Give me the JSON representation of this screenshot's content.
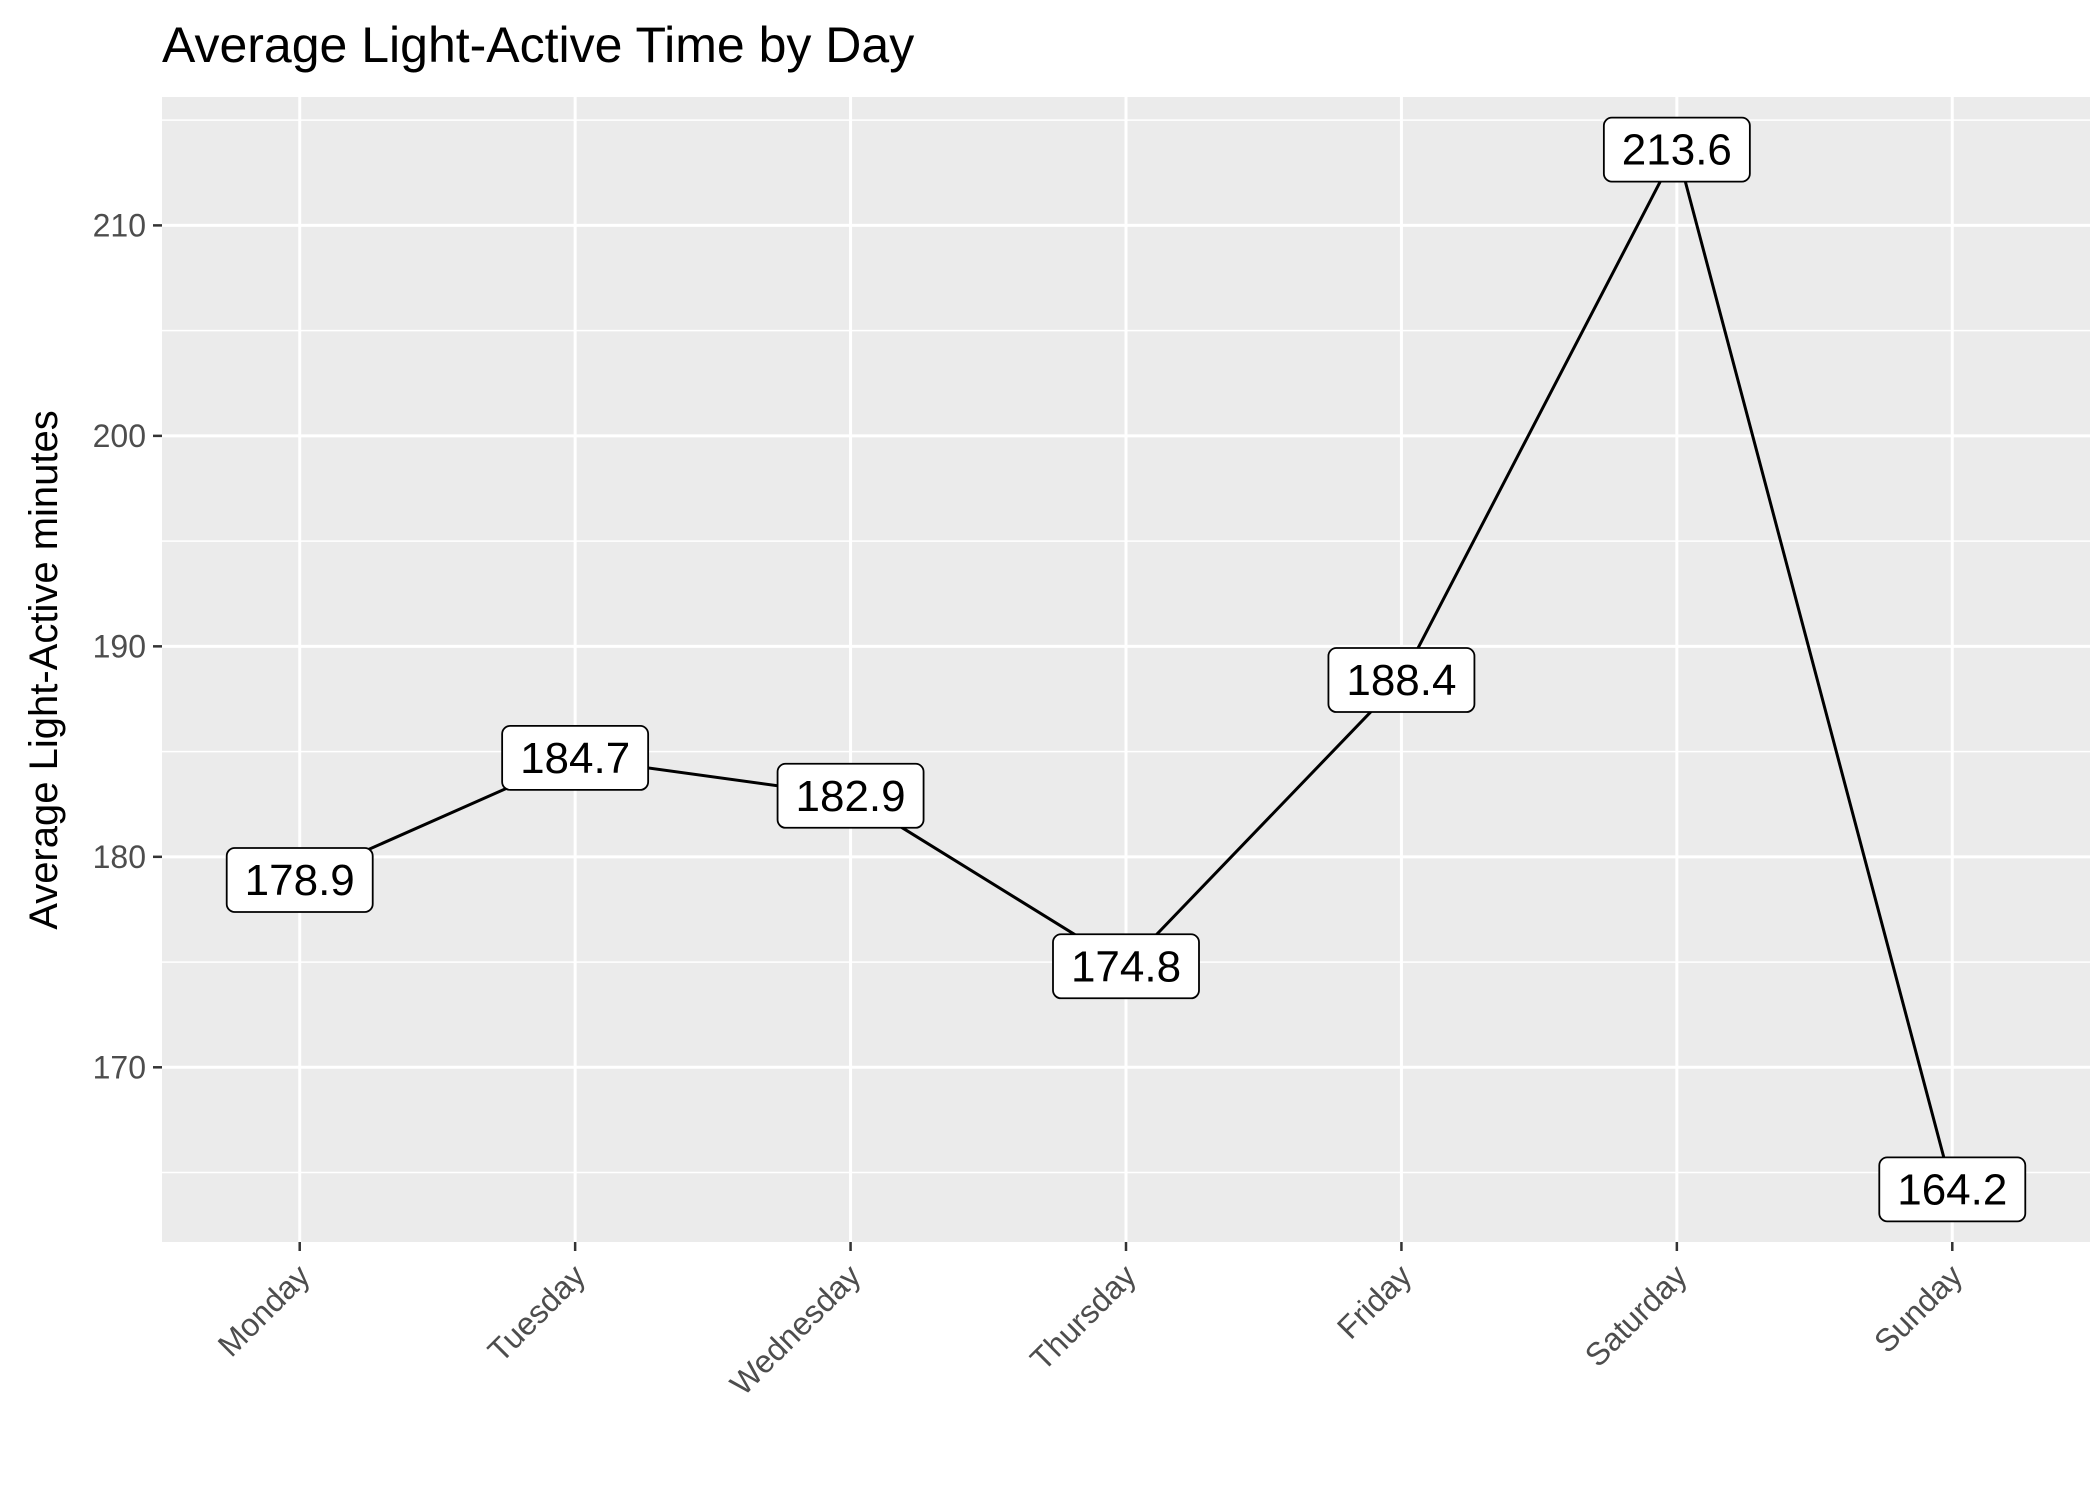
{
  "chart_data": {
    "type": "line",
    "title": "Average Light-Active Time by Day",
    "xlabel": "",
    "ylabel": "Average Light-Active minutes",
    "categories": [
      "Monday",
      "Tuesday",
      "Wednesday",
      "Thursday",
      "Friday",
      "Saturday",
      "Sunday"
    ],
    "values": [
      178.9,
      184.7,
      182.9,
      174.8,
      188.4,
      213.6,
      164.2
    ],
    "data_labels": [
      "178.9",
      "184.7",
      "182.9",
      "174.8",
      "188.4",
      "213.6",
      "164.2"
    ],
    "ylim": [
      161.7,
      216.1
    ],
    "yticks": [
      170,
      180,
      190,
      200,
      210
    ],
    "ytick_labels": [
      "170",
      "180",
      "190",
      "200",
      "210"
    ],
    "grid": true,
    "legend": "none",
    "colors": {
      "panel": "#ebebeb",
      "grid": "#ffffff",
      "line": "#000000",
      "label_fill": "#ffffff",
      "tick_text": "#4d4d4d"
    }
  }
}
